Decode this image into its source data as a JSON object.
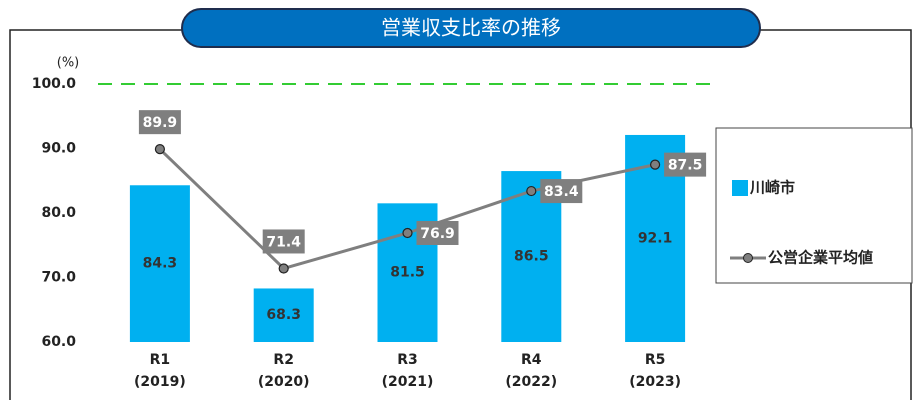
{
  "chart_data": {
    "type": "bar_line",
    "title": "営業収支比率の推移",
    "y_unit": "(%)",
    "categories": [
      [
        "R1",
        "(2019)"
      ],
      [
        "R2",
        "(2020)"
      ],
      [
        "R3",
        "(2021)"
      ],
      [
        "R4",
        "(2022)"
      ],
      [
        "R5",
        "(2023)"
      ]
    ],
    "series": [
      {
        "name": "川崎市",
        "type": "bar",
        "color": "#00b0f0",
        "values": [
          84.3,
          68.3,
          81.5,
          86.5,
          92.1
        ]
      },
      {
        "name": "公営企業平均値",
        "type": "line",
        "color": "#7f7f7f",
        "values": [
          89.9,
          71.4,
          76.9,
          83.4,
          87.5
        ]
      }
    ],
    "ylim": [
      60,
      100
    ],
    "yticks": [
      {
        "value": 60,
        "label": "60.0"
      },
      {
        "value": 70,
        "label": "70.0"
      },
      {
        "value": 80,
        "label": "80.0"
      },
      {
        "value": 90,
        "label": "90.0"
      },
      {
        "value": 100,
        "label": "100.0"
      }
    ],
    "reference_line": {
      "value": 100,
      "color": "#33cc33"
    },
    "legend": "right"
  }
}
